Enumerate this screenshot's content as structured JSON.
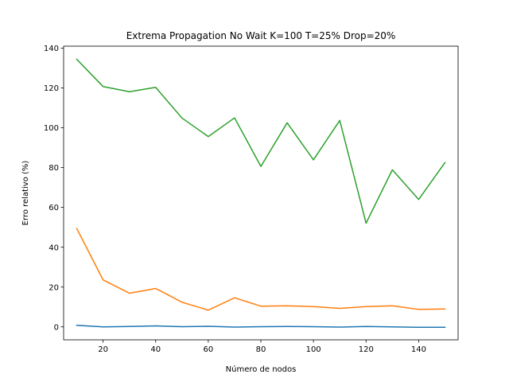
{
  "chart_data": {
    "type": "line",
    "title": "Extrema Propagation No Wait K=100 T=25% Drop=20%",
    "xlabel": "Número de nodos",
    "ylabel": "Erro relativo (%)",
    "xlim": [
      5,
      155
    ],
    "ylim": [
      -6.5,
      141
    ],
    "x": [
      10,
      20,
      30,
      40,
      50,
      60,
      70,
      80,
      90,
      100,
      110,
      120,
      130,
      140,
      150
    ],
    "xticks": [
      20,
      40,
      60,
      80,
      100,
      120,
      140
    ],
    "yticks": [
      0,
      20,
      40,
      60,
      80,
      100,
      120,
      140
    ],
    "grid": false,
    "series": [
      {
        "color": "#1f77b4",
        "values": [
          0.8,
          0.0,
          0.2,
          0.5,
          0.1,
          0.3,
          -0.1,
          0.1,
          0.2,
          0.1,
          -0.1,
          0.2,
          0.0,
          -0.2,
          -0.2
        ]
      },
      {
        "color": "#ff7f0e",
        "values": [
          49.4,
          23.6,
          16.9,
          19.3,
          12.4,
          8.4,
          14.6,
          10.4,
          10.6,
          10.2,
          9.3,
          10.2,
          10.6,
          8.8,
          9.0
        ]
      },
      {
        "color": "#2ca02c",
        "values": [
          134.4,
          120.7,
          118.1,
          120.3,
          104.9,
          95.6,
          105.0,
          80.6,
          102.5,
          83.9,
          103.7,
          52.1,
          78.9,
          64.0,
          82.5
        ]
      }
    ]
  }
}
